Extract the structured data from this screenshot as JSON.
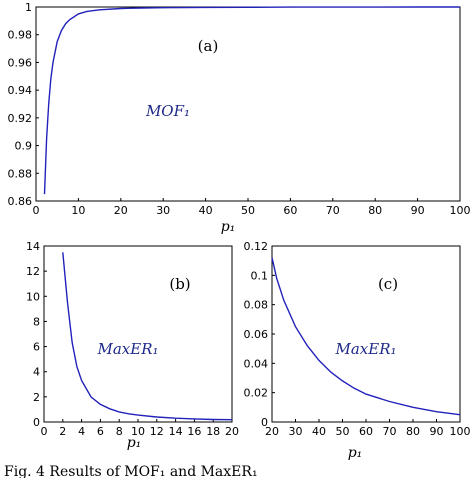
{
  "colors": {
    "curve": "#2222bb",
    "series_label": "#1e2a8a",
    "axes": "#000000"
  },
  "chart_data": [
    {
      "type": "line",
      "panel_label": "(a)",
      "series_label": "MOF₁",
      "xlabel": "p₁",
      "xlim": [
        0,
        100
      ],
      "ylim": [
        0.86,
        1.0
      ],
      "xticks": [
        0,
        10,
        20,
        30,
        40,
        50,
        60,
        70,
        80,
        90,
        100
      ],
      "xtick_labels": [
        "0",
        "10",
        "20",
        "30",
        "40",
        "50",
        "60",
        "70",
        "80",
        "90",
        "100"
      ],
      "yticks": [
        0.86,
        0.88,
        0.9,
        0.92,
        0.94,
        0.96,
        0.98,
        1.0
      ],
      "ytick_labels": [
        "0.86",
        "0.88",
        "0.9",
        "0.92",
        "0.94",
        "0.96",
        "0.98",
        "1"
      ],
      "x": [
        2,
        2.5,
        3,
        3.5,
        4,
        5,
        6,
        7,
        8,
        10,
        12,
        15,
        20,
        25,
        30,
        40,
        50,
        60,
        70,
        80,
        90,
        100
      ],
      "y": [
        0.865,
        0.905,
        0.93,
        0.948,
        0.96,
        0.975,
        0.983,
        0.988,
        0.991,
        0.995,
        0.9968,
        0.998,
        0.9989,
        0.9993,
        0.9995,
        0.9997,
        0.9998,
        0.9999,
        0.9999,
        0.99995,
        1.0,
        1.0
      ]
    },
    {
      "type": "line",
      "panel_label": "(b)",
      "series_label": "MaxER₁",
      "xlabel": "p₁",
      "xlim": [
        0,
        20
      ],
      "ylim": [
        0,
        14
      ],
      "xticks": [
        0,
        2,
        4,
        6,
        8,
        10,
        12,
        14,
        16,
        18,
        20
      ],
      "xtick_labels": [
        "0",
        "2",
        "4",
        "6",
        "8",
        "10",
        "12",
        "14",
        "16",
        "18",
        "20"
      ],
      "yticks": [
        0,
        2,
        4,
        6,
        8,
        10,
        12,
        14
      ],
      "ytick_labels": [
        "0",
        "2",
        "4",
        "6",
        "8",
        "10",
        "12",
        "14"
      ],
      "x": [
        2,
        2.5,
        3,
        3.5,
        4,
        5,
        6,
        7,
        8,
        9,
        10,
        12,
        14,
        16,
        18,
        20
      ],
      "y": [
        13.5,
        9.5,
        6.3,
        4.4,
        3.3,
        2.0,
        1.4,
        1.05,
        0.8,
        0.65,
        0.55,
        0.4,
        0.3,
        0.25,
        0.2,
        0.18
      ]
    },
    {
      "type": "line",
      "panel_label": "(c)",
      "series_label": "MaxER₁",
      "xlabel": "p₁",
      "xlim": [
        20,
        100
      ],
      "ylim": [
        0,
        0.12
      ],
      "xticks": [
        20,
        30,
        40,
        50,
        60,
        70,
        80,
        90,
        100
      ],
      "xtick_labels": [
        "20",
        "30",
        "40",
        "50",
        "60",
        "70",
        "80",
        "90",
        "100"
      ],
      "yticks": [
        0,
        0.02,
        0.04,
        0.06,
        0.08,
        0.1,
        0.12
      ],
      "ytick_labels": [
        "0",
        "0.02",
        "0.04",
        "0.06",
        "0.08",
        "0.1",
        "0.12"
      ],
      "x": [
        20,
        22,
        25,
        30,
        35,
        40,
        45,
        50,
        55,
        60,
        70,
        80,
        90,
        100
      ],
      "y": [
        0.112,
        0.098,
        0.083,
        0.065,
        0.052,
        0.042,
        0.034,
        0.028,
        0.023,
        0.019,
        0.014,
        0.01,
        0.007,
        0.005
      ]
    }
  ],
  "caption": "Fig. 4   Results of MOF₁ and MaxER₁"
}
